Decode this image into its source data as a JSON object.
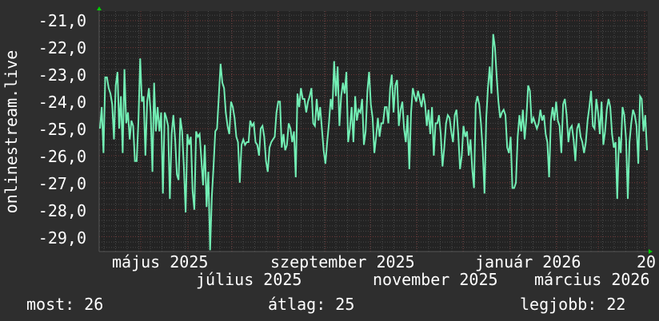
{
  "chart_data": {
    "type": "line",
    "title": "",
    "ylabel": "onlinestream.live",
    "xlabel": "",
    "ylim": [
      -29.55,
      -20.65
    ],
    "y_ticks": [
      "-21,0",
      "-22,0",
      "-23,0",
      "-24,0",
      "-25,0",
      "-26,0",
      "-27,0",
      "-28,0",
      "-29,0"
    ],
    "y_tick_values": [
      -21,
      -22,
      -23,
      -24,
      -25,
      -26,
      -27,
      -28,
      -29
    ],
    "x_ticks": [
      "május 2025",
      "július 2025",
      "szeptember 2025",
      "november 2025",
      "január 2026",
      "március 2026",
      "20"
    ],
    "grid": true,
    "series_color": "#72eeb4",
    "background": "#2e2e2e",
    "plot_background": "#232323",
    "series": [
      {
        "values": [
          -25.0,
          -24.2,
          -25.9,
          -23.1,
          -23.1,
          -23.5,
          -23.7,
          -24.1,
          -25.4,
          -23.4,
          -22.9,
          -25.0,
          -23.8,
          -25.9,
          -22.8,
          -24.8,
          -24.4,
          -25.4,
          -24.7,
          -24.9,
          -26.2,
          -26.2,
          -24.7,
          -22.4,
          -24.0,
          -23.8,
          -26.0,
          -24.0,
          -23.5,
          -24.4,
          -26.6,
          -23.3,
          -25.1,
          -24.2,
          -25.1,
          -24.4,
          -27.4,
          -24.4,
          -24.6,
          -24.9,
          -27.6,
          -25.2,
          -24.5,
          -25.4,
          -26.7,
          -26.9,
          -24.6,
          -25.1,
          -26.4,
          -28.1,
          -25.2,
          -25.6,
          -25.3,
          -27.3,
          -28.0,
          -25.1,
          -25.3,
          -25.2,
          -26.1,
          -27.1,
          -25.6,
          -27.9,
          -26.6,
          -29.5,
          -27.5,
          -26.4,
          -25.1,
          -25.0,
          -23.8,
          -22.6,
          -23.3,
          -23.5,
          -24.4,
          -24.9,
          -25.2,
          -24.0,
          -24.2,
          -24.6,
          -25.3,
          -25.5,
          -27.0,
          -25.6,
          -25.4,
          -25.6,
          -25.5,
          -25.5,
          -24.7,
          -24.9,
          -24.8,
          -25.5,
          -25.6,
          -26.0,
          -25.0,
          -24.9,
          -25.3,
          -26.2,
          -26.6,
          -25.7,
          -25.5,
          -25.4,
          -25.3,
          -24.4,
          -24.0,
          -24.0,
          -25.7,
          -25.2,
          -25.8,
          -25.6,
          -24.8,
          -25.0,
          -25.5,
          -25.1,
          -26.8,
          -23.7,
          -24.2,
          -23.5,
          -23.9,
          -23.9,
          -24.4,
          -24.0,
          -23.8,
          -23.5,
          -24.8,
          -24.9,
          -23.9,
          -24.7,
          -24.2,
          -25.0,
          -25.8,
          -26.3,
          -25.5,
          -24.8,
          -23.9,
          -24.3,
          -22.5,
          -23.8,
          -22.7,
          -24.9,
          -23.8,
          -23.3,
          -23.7,
          -22.9,
          -25.5,
          -25.0,
          -24.2,
          -25.5,
          -23.8,
          -24.7,
          -24.3,
          -24.4,
          -23.9,
          -25.6,
          -25.1,
          -23.6,
          -22.9,
          -24.1,
          -24.6,
          -25.9,
          -25.3,
          -24.6,
          -25.3,
          -24.8,
          -24.8,
          -24.2,
          -24.2,
          -24.8,
          -23.5,
          -23.0,
          -24.4,
          -23.4,
          -23.2,
          -24.9,
          -24.3,
          -24.0,
          -25.0,
          -25.5,
          -24.5,
          -26.5,
          -24.4,
          -23.5,
          -23.8,
          -24.0,
          -23.6,
          -23.9,
          -24.2,
          -23.7,
          -24.1,
          -24.9,
          -24.3,
          -25.2,
          -24.2,
          -26.0,
          -24.8,
          -24.8,
          -24.5,
          -25.2,
          -26.4,
          -25.7,
          -24.8,
          -24.5,
          -24.6,
          -25.1,
          -25.5,
          -24.5,
          -24.3,
          -25.2,
          -26.5,
          -26.0,
          -24.9,
          -25.3,
          -25.1,
          -26.0,
          -25.4,
          -26.5,
          -27.2,
          -24.1,
          -23.8,
          -24.1,
          -24.8,
          -25.8,
          -27.4,
          -24.6,
          -23.5,
          -22.7,
          -23.7,
          -21.5,
          -22.0,
          -23.1,
          -24.0,
          -24.6,
          -24.4,
          -24.3,
          -24.5,
          -25.7,
          -25.9,
          -25.3,
          -27.2,
          -27.2,
          -27.0,
          -25.3,
          -24.5,
          -25.1,
          -24.3,
          -25.4,
          -24.6,
          -23.4,
          -23.6,
          -24.8,
          -24.6,
          -24.8,
          -25.0,
          -24.8,
          -24.3,
          -24.7,
          -24.5,
          -25.2,
          -25.5,
          -26.8,
          -24.7,
          -24.2,
          -24.7,
          -24.0,
          -24.7,
          -24.9,
          -25.9,
          -24.1,
          -23.9,
          -24.5,
          -25.5,
          -25.0,
          -24.9,
          -25.4,
          -26.2,
          -25.0,
          -24.8,
          -25.3,
          -25.5,
          -25.9,
          -25.5,
          -24.7,
          -24.2,
          -23.6,
          -24.9,
          -25.0,
          -23.9,
          -24.4,
          -25.2,
          -24.0,
          -25.6,
          -25.1,
          -24.3,
          -23.9,
          -24.2,
          -25.2,
          -25.7,
          -25.5,
          -27.6,
          -25.3,
          -25.9,
          -24.2,
          -24.5,
          -25.4,
          -27.6,
          -25.5,
          -24.8,
          -24.3,
          -24.5,
          -24.9,
          -26.3,
          -23.8,
          -23.9,
          -25.1,
          -24.5,
          -25.8
        ]
      }
    ],
    "legend": {
      "current_label": "most:",
      "current_value": "26",
      "average_label": "átlag:",
      "average_value": "25",
      "best_label": "legjobb:",
      "best_value": "22"
    }
  }
}
